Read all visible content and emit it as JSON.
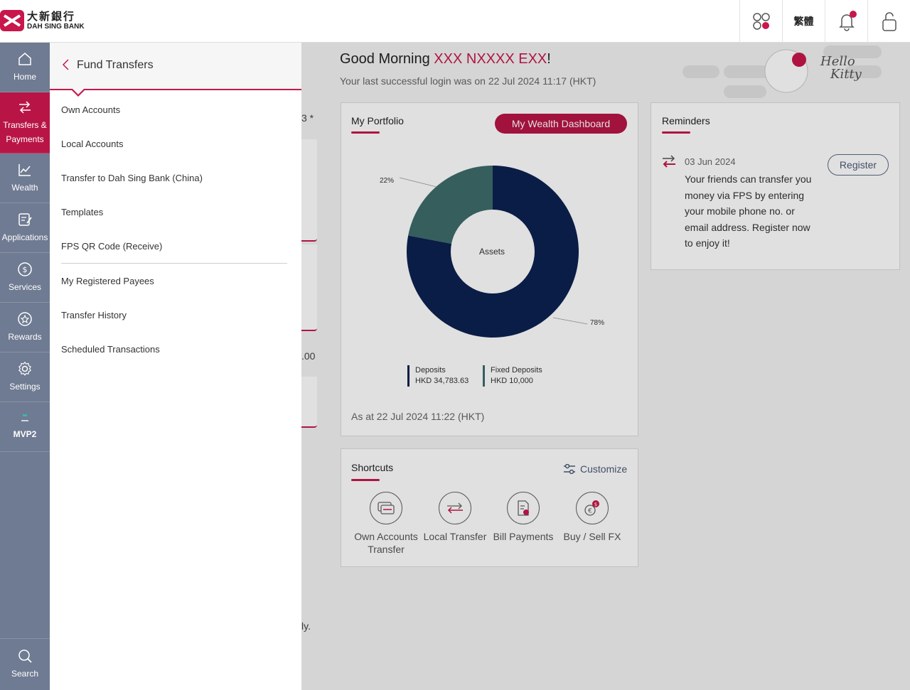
{
  "header": {
    "brand_cn": "大新銀行",
    "brand_en": "DAH SING BANK",
    "lang_label": "繁體",
    "brand_color": "#c8174b"
  },
  "nav": {
    "items": [
      {
        "label": "Home",
        "icon": "home-icon"
      },
      {
        "label": "Transfers & Payments",
        "icon": "transfer-icon"
      },
      {
        "label": "Wealth",
        "icon": "chart-icon"
      },
      {
        "label": "Applications",
        "icon": "form-icon"
      },
      {
        "label": "Services",
        "icon": "dollar-icon"
      },
      {
        "label": "Rewards",
        "icon": "star-icon"
      },
      {
        "label": "Settings",
        "icon": "gear-icon"
      },
      {
        "label": "MVP2",
        "icon": "mvp-icon"
      }
    ],
    "search_label": "Search"
  },
  "drawer": {
    "title": "Fund Transfers",
    "items": [
      "Own Accounts",
      "Local Accounts",
      "Transfer to Dah Sing Bank (China)",
      "Templates",
      "FPS QR Code (Receive)",
      "My Registered Payees",
      "Transfer History",
      "Scheduled Transactions"
    ]
  },
  "greeting": {
    "prefix": "Good Morning ",
    "name": "XXX NXXXX EXX",
    "suffix": "!",
    "last_login": "Your last successful login was on 22 Jul 2024 11:17 (HKT)"
  },
  "portfolio": {
    "title": "My Portfolio",
    "dashboard_button": "My Wealth Dashboard",
    "center_label": "Assets",
    "as_of": "As at 22 Jul 2024 11:22 (HKT)",
    "slices": [
      {
        "name": "Deposits",
        "amount": "HKD 34,783.63",
        "percent": 78,
        "label": "78%",
        "color": "#0c2150"
      },
      {
        "name": "Fixed Deposits",
        "amount": "HKD 10,000",
        "percent": 22,
        "label": "22%",
        "color": "#3d6b6a"
      }
    ]
  },
  "reminders": {
    "title": "Reminders",
    "date": "03 Jun 2024",
    "text": "Your friends can transfer you money via FPS by entering your mobile phone no. or email address. Register now to enjoy it!",
    "register_button": "Register"
  },
  "shortcuts": {
    "title": "Shortcuts",
    "customize": "Customize",
    "items": [
      {
        "label": "Own Accounts Transfer",
        "icon": "own-transfer-icon"
      },
      {
        "label": "Local Transfer",
        "icon": "local-transfer-icon"
      },
      {
        "label": "Bill Payments",
        "icon": "bill-icon"
      },
      {
        "label": "Buy / Sell FX",
        "icon": "fx-icon"
      }
    ]
  },
  "peek": {
    "text_a": "3 *",
    "text_b": ".00",
    "text_c": "ly."
  }
}
